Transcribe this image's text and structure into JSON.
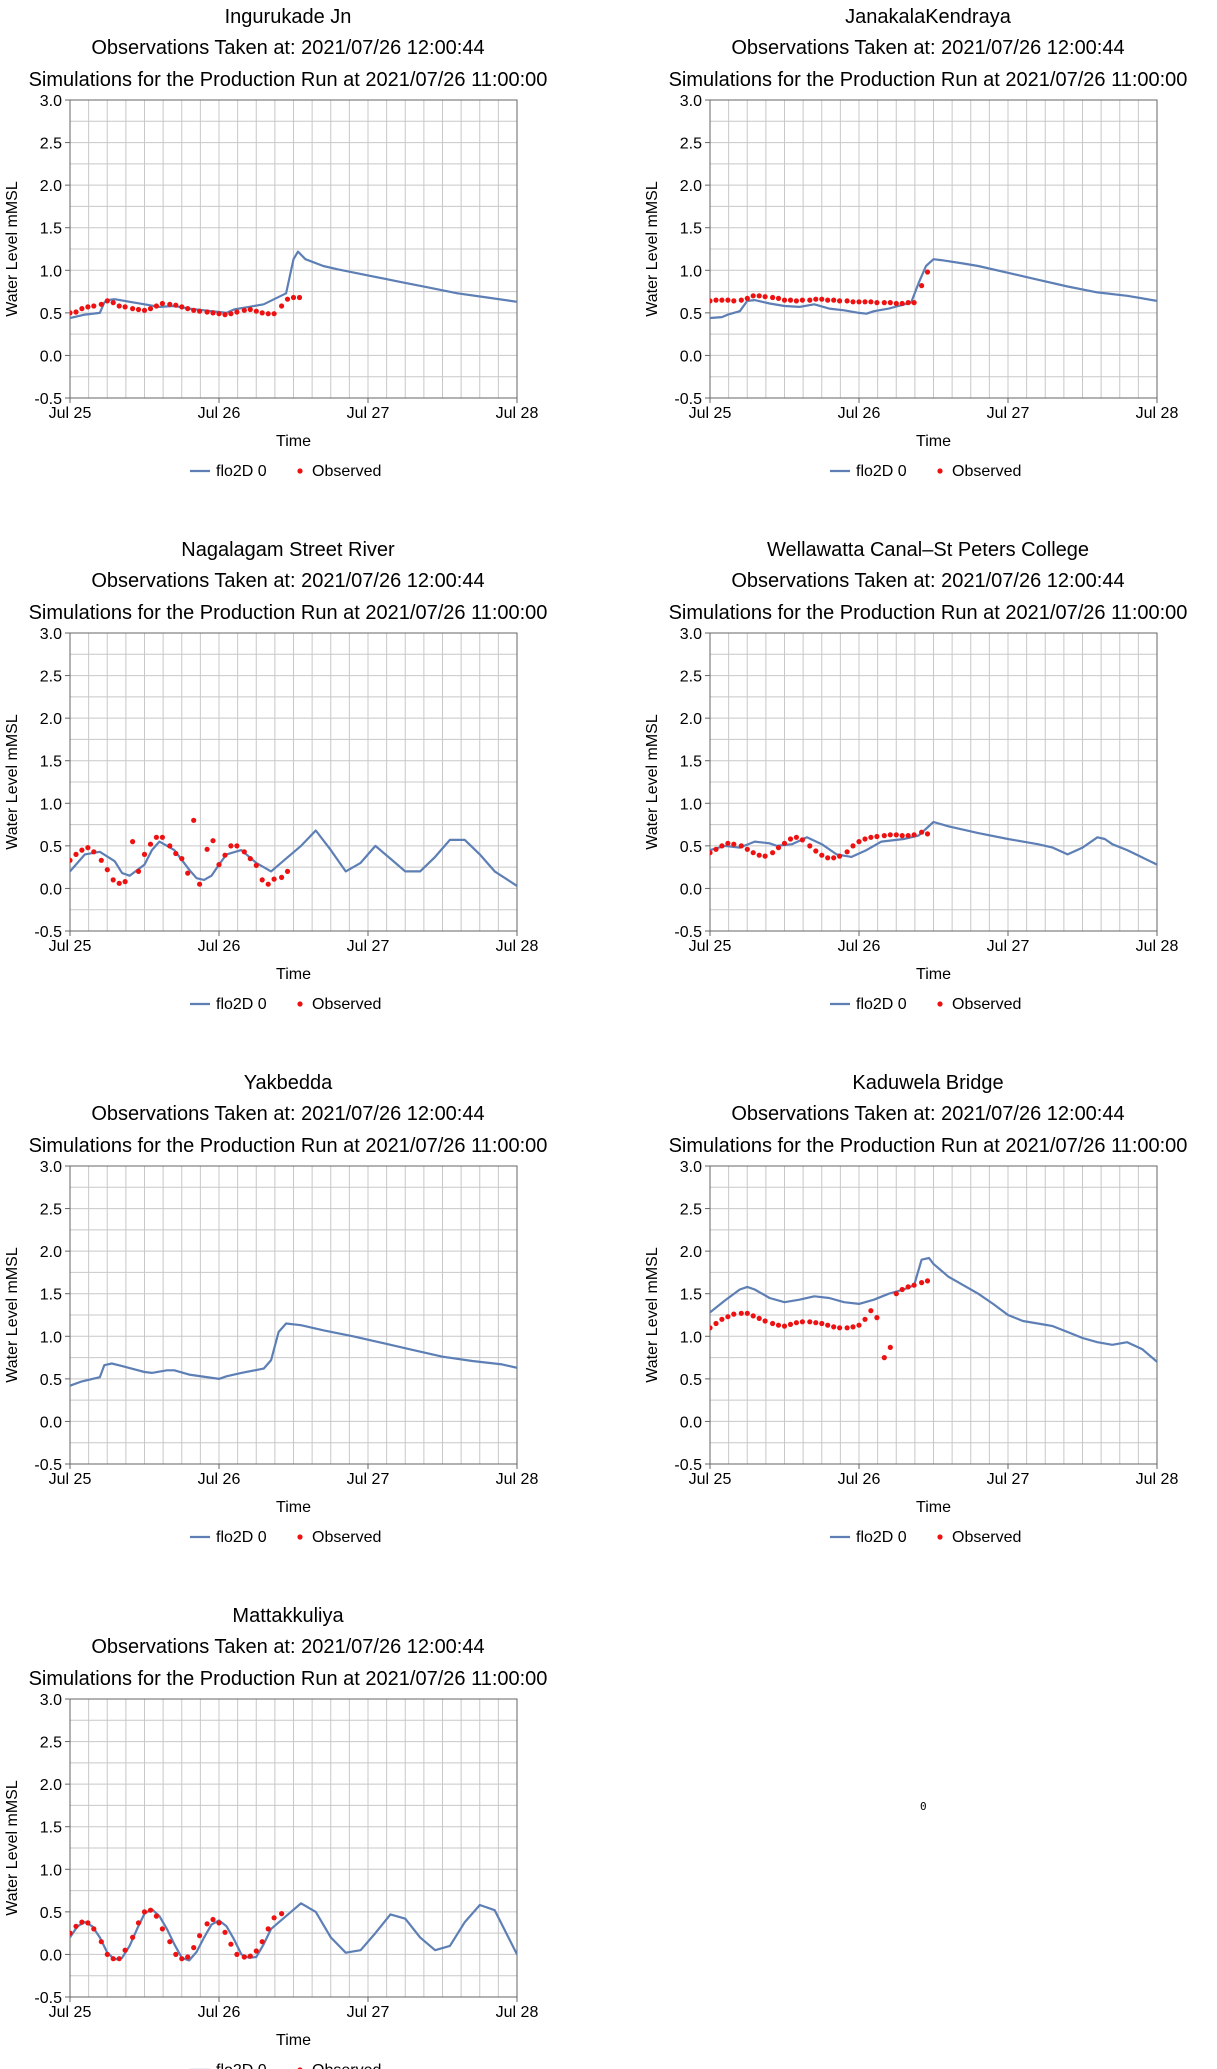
{
  "common": {
    "observation_label": "Observations Taken at: 2021/07/26 12:00:44",
    "simulation_label": "Simulations for the Production Run at 2021/07/26 11:00:00",
    "ylabel": "Water Level mMSL",
    "xlabel": "Time",
    "x_ticks": [
      "Jul 25",
      "Jul 26",
      "Jul 27",
      "Jul 28"
    ],
    "y_ticks": [
      "3.0",
      "2.5",
      "2.0",
      "1.5",
      "1.0",
      "0.5",
      "0.0",
      "-0.5"
    ],
    "legend": {
      "sim": "flo2D 0",
      "obs": "Observed"
    },
    "colors": {
      "sim": "#5d7fb5",
      "obs": "#ee1111",
      "grid": "#c8c8c8",
      "frame": "#666666"
    }
  },
  "stray_text": "0",
  "chart_data": [
    {
      "type": "line",
      "title": "Ingurukade Jn",
      "x_unit": "days since Jul 25 00:00",
      "xlim": [
        0,
        3
      ],
      "ylim": [
        -0.5,
        3.0
      ],
      "series": [
        {
          "name": "flo2D 0",
          "kind": "line",
          "x": [
            0,
            0.1,
            0.2,
            0.23,
            0.25,
            0.3,
            0.4,
            0.5,
            0.6,
            0.7,
            0.8,
            0.9,
            1.0,
            1.05,
            1.1,
            1.2,
            1.3,
            1.45,
            1.5,
            1.53,
            1.58,
            1.7,
            1.8,
            2.0,
            2.2,
            2.4,
            2.6,
            2.8,
            3.0
          ],
          "y": [
            0.44,
            0.48,
            0.5,
            0.62,
            0.65,
            0.66,
            0.63,
            0.6,
            0.57,
            0.58,
            0.55,
            0.53,
            0.51,
            0.5,
            0.54,
            0.57,
            0.6,
            0.73,
            1.13,
            1.22,
            1.13,
            1.05,
            1.01,
            0.94,
            0.87,
            0.8,
            0.73,
            0.68,
            0.63
          ]
        },
        {
          "name": "Observed",
          "kind": "points",
          "x": [
            0.0,
            0.04,
            0.08,
            0.12,
            0.16,
            0.21,
            0.25,
            0.29,
            0.33,
            0.37,
            0.42,
            0.46,
            0.5,
            0.54,
            0.58,
            0.62,
            0.67,
            0.71,
            0.75,
            0.79,
            0.83,
            0.87,
            0.92,
            0.96,
            1.0,
            1.04,
            1.08,
            1.12,
            1.17,
            1.21,
            1.25,
            1.29,
            1.33,
            1.37,
            1.42,
            1.46,
            1.5,
            1.54
          ],
          "y": [
            0.5,
            0.51,
            0.55,
            0.57,
            0.58,
            0.6,
            0.64,
            0.62,
            0.58,
            0.57,
            0.55,
            0.54,
            0.53,
            0.55,
            0.58,
            0.61,
            0.6,
            0.59,
            0.57,
            0.55,
            0.53,
            0.52,
            0.51,
            0.5,
            0.49,
            0.48,
            0.49,
            0.51,
            0.53,
            0.54,
            0.52,
            0.5,
            0.49,
            0.49,
            0.58,
            0.66,
            0.68,
            0.68
          ]
        }
      ]
    },
    {
      "type": "line",
      "title": "JanakalaKendraya",
      "x_unit": "days since Jul 25 00:00",
      "xlim": [
        0,
        3
      ],
      "ylim": [
        -0.5,
        3.0
      ],
      "series": [
        {
          "name": "flo2D 0",
          "kind": "line",
          "x": [
            0,
            0.08,
            0.12,
            0.2,
            0.25,
            0.3,
            0.4,
            0.5,
            0.6,
            0.7,
            0.8,
            0.9,
            1.0,
            1.05,
            1.1,
            1.2,
            1.35,
            1.4,
            1.45,
            1.5,
            1.55,
            1.7,
            1.8,
            2.0,
            2.2,
            2.4,
            2.6,
            2.8,
            3.0
          ],
          "y": [
            0.44,
            0.45,
            0.48,
            0.52,
            0.64,
            0.65,
            0.61,
            0.58,
            0.57,
            0.6,
            0.55,
            0.53,
            0.5,
            0.49,
            0.52,
            0.55,
            0.62,
            0.85,
            1.05,
            1.13,
            1.12,
            1.08,
            1.05,
            0.97,
            0.89,
            0.81,
            0.74,
            0.7,
            0.64
          ]
        },
        {
          "name": "Observed",
          "kind": "points",
          "x": [
            0.0,
            0.04,
            0.08,
            0.12,
            0.16,
            0.21,
            0.25,
            0.29,
            0.33,
            0.37,
            0.42,
            0.46,
            0.5,
            0.54,
            0.58,
            0.62,
            0.67,
            0.71,
            0.75,
            0.79,
            0.83,
            0.87,
            0.92,
            0.96,
            1.0,
            1.04,
            1.08,
            1.12,
            1.17,
            1.21,
            1.25,
            1.29,
            1.33,
            1.37,
            1.42,
            1.46
          ],
          "y": [
            0.64,
            0.65,
            0.65,
            0.65,
            0.64,
            0.65,
            0.67,
            0.7,
            0.7,
            0.69,
            0.68,
            0.67,
            0.65,
            0.65,
            0.64,
            0.65,
            0.65,
            0.66,
            0.66,
            0.65,
            0.65,
            0.64,
            0.64,
            0.63,
            0.63,
            0.63,
            0.63,
            0.62,
            0.62,
            0.62,
            0.61,
            0.61,
            0.62,
            0.62,
            0.82,
            0.98
          ]
        }
      ]
    },
    {
      "type": "line",
      "title": "Nagalagam Street River",
      "x_unit": "days since Jul 25 00:00",
      "xlim": [
        0,
        3
      ],
      "ylim": [
        -0.5,
        3.0
      ],
      "series": [
        {
          "name": "flo2D 0",
          "kind": "line",
          "x": [
            0,
            0.1,
            0.2,
            0.3,
            0.35,
            0.4,
            0.5,
            0.55,
            0.6,
            0.7,
            0.8,
            0.85,
            0.9,
            0.95,
            1.0,
            1.05,
            1.15,
            1.25,
            1.35,
            1.45,
            1.55,
            1.65,
            1.75,
            1.85,
            1.95,
            2.05,
            2.15,
            2.25,
            2.35,
            2.45,
            2.55,
            2.65,
            2.75,
            2.85,
            3.0
          ],
          "y": [
            0.2,
            0.4,
            0.43,
            0.32,
            0.18,
            0.15,
            0.28,
            0.45,
            0.55,
            0.45,
            0.22,
            0.12,
            0.1,
            0.15,
            0.28,
            0.4,
            0.45,
            0.3,
            0.2,
            0.35,
            0.5,
            0.68,
            0.45,
            0.2,
            0.3,
            0.5,
            0.35,
            0.2,
            0.2,
            0.37,
            0.57,
            0.57,
            0.4,
            0.2,
            0.03
          ]
        },
        {
          "name": "Observed",
          "kind": "points",
          "x": [
            0.0,
            0.04,
            0.08,
            0.12,
            0.16,
            0.21,
            0.25,
            0.29,
            0.33,
            0.37,
            0.42,
            0.46,
            0.5,
            0.54,
            0.58,
            0.62,
            0.67,
            0.71,
            0.75,
            0.79,
            0.83,
            0.87,
            0.92,
            0.96,
            1.0,
            1.04,
            1.08,
            1.12,
            1.17,
            1.21,
            1.25,
            1.29,
            1.33,
            1.37,
            1.42,
            1.46
          ],
          "y": [
            0.33,
            0.4,
            0.45,
            0.48,
            0.43,
            0.33,
            0.22,
            0.1,
            0.06,
            0.08,
            0.55,
            0.2,
            0.4,
            0.52,
            0.6,
            0.6,
            0.5,
            0.41,
            0.35,
            0.18,
            0.8,
            0.05,
            0.46,
            0.56,
            0.28,
            0.39,
            0.5,
            0.5,
            0.43,
            0.35,
            0.27,
            0.1,
            0.05,
            0.11,
            0.13,
            0.2
          ]
        }
      ]
    },
    {
      "type": "line",
      "title": "Wellawatta Canal–St Peters College",
      "x_unit": "days since Jul 25 00:00",
      "xlim": [
        0,
        3
      ],
      "ylim": [
        -0.5,
        3.0
      ],
      "series": [
        {
          "name": "flo2D 0",
          "kind": "line",
          "x": [
            0,
            0.1,
            0.2,
            0.3,
            0.4,
            0.45,
            0.55,
            0.65,
            0.75,
            0.85,
            0.95,
            1.05,
            1.15,
            1.3,
            1.4,
            1.45,
            1.5,
            1.6,
            1.8,
            2.0,
            2.2,
            2.3,
            2.4,
            2.5,
            2.6,
            2.65,
            2.7,
            2.8,
            3.0
          ],
          "y": [
            0.45,
            0.5,
            0.48,
            0.55,
            0.53,
            0.5,
            0.52,
            0.6,
            0.52,
            0.4,
            0.37,
            0.45,
            0.55,
            0.58,
            0.62,
            0.7,
            0.78,
            0.73,
            0.65,
            0.58,
            0.52,
            0.48,
            0.4,
            0.48,
            0.6,
            0.58,
            0.52,
            0.45,
            0.28
          ]
        },
        {
          "name": "Observed",
          "kind": "points",
          "x": [
            0.0,
            0.04,
            0.08,
            0.12,
            0.16,
            0.21,
            0.25,
            0.29,
            0.33,
            0.37,
            0.42,
            0.46,
            0.5,
            0.54,
            0.58,
            0.62,
            0.67,
            0.71,
            0.75,
            0.79,
            0.83,
            0.87,
            0.92,
            0.96,
            1.0,
            1.04,
            1.08,
            1.12,
            1.17,
            1.21,
            1.25,
            1.29,
            1.33,
            1.37,
            1.42,
            1.46
          ],
          "y": [
            0.42,
            0.46,
            0.5,
            0.53,
            0.52,
            0.5,
            0.46,
            0.42,
            0.39,
            0.38,
            0.42,
            0.48,
            0.53,
            0.58,
            0.6,
            0.57,
            0.5,
            0.44,
            0.39,
            0.36,
            0.36,
            0.38,
            0.43,
            0.5,
            0.55,
            0.58,
            0.6,
            0.61,
            0.62,
            0.63,
            0.63,
            0.62,
            0.62,
            0.63,
            0.66,
            0.64
          ]
        }
      ]
    },
    {
      "type": "line",
      "title": "Yakbedda",
      "x_unit": "days since Jul 25 00:00",
      "xlim": [
        0,
        3
      ],
      "ylim": [
        -0.5,
        3.0
      ],
      "series": [
        {
          "name": "flo2D 0",
          "kind": "line",
          "x": [
            0,
            0.08,
            0.2,
            0.23,
            0.28,
            0.35,
            0.5,
            0.55,
            0.65,
            0.7,
            0.8,
            1.0,
            1.05,
            1.15,
            1.3,
            1.35,
            1.4,
            1.45,
            1.55,
            1.7,
            1.9,
            2.1,
            2.3,
            2.5,
            2.7,
            2.9,
            3.0
          ],
          "y": [
            0.42,
            0.47,
            0.52,
            0.66,
            0.68,
            0.65,
            0.58,
            0.57,
            0.6,
            0.6,
            0.55,
            0.5,
            0.53,
            0.57,
            0.62,
            0.72,
            1.05,
            1.15,
            1.13,
            1.07,
            1.0,
            0.92,
            0.84,
            0.76,
            0.71,
            0.67,
            0.63
          ]
        }
      ]
    },
    {
      "type": "line",
      "title": "Kaduwela Bridge",
      "x_unit": "days since Jul 25 00:00",
      "xlim": [
        0,
        3
      ],
      "ylim": [
        -0.5,
        3.0
      ],
      "series": [
        {
          "name": "flo2D 0",
          "kind": "line",
          "x": [
            0,
            0.1,
            0.2,
            0.25,
            0.3,
            0.4,
            0.5,
            0.6,
            0.7,
            0.8,
            0.9,
            1.0,
            1.1,
            1.2,
            1.3,
            1.37,
            1.42,
            1.47,
            1.5,
            1.6,
            1.7,
            1.8,
            1.9,
            2.0,
            2.1,
            2.2,
            2.3,
            2.4,
            2.5,
            2.6,
            2.7,
            2.8,
            2.9,
            3.0
          ],
          "y": [
            1.28,
            1.42,
            1.55,
            1.58,
            1.55,
            1.45,
            1.4,
            1.43,
            1.47,
            1.45,
            1.4,
            1.38,
            1.43,
            1.5,
            1.55,
            1.6,
            1.9,
            1.92,
            1.85,
            1.7,
            1.6,
            1.5,
            1.38,
            1.25,
            1.18,
            1.15,
            1.12,
            1.05,
            0.98,
            0.93,
            0.9,
            0.93,
            0.85,
            0.7
          ]
        },
        {
          "name": "Observed",
          "kind": "points",
          "x": [
            0.0,
            0.04,
            0.08,
            0.12,
            0.16,
            0.21,
            0.25,
            0.29,
            0.33,
            0.37,
            0.42,
            0.46,
            0.5,
            0.54,
            0.58,
            0.62,
            0.67,
            0.71,
            0.75,
            0.79,
            0.83,
            0.87,
            0.92,
            0.96,
            1.0,
            1.04,
            1.08,
            1.12,
            1.17,
            1.21,
            1.25,
            1.29,
            1.33,
            1.37,
            1.42,
            1.46
          ],
          "y": [
            1.1,
            1.15,
            1.2,
            1.23,
            1.26,
            1.27,
            1.27,
            1.24,
            1.21,
            1.18,
            1.15,
            1.13,
            1.12,
            1.14,
            1.16,
            1.17,
            1.17,
            1.16,
            1.15,
            1.13,
            1.11,
            1.1,
            1.1,
            1.11,
            1.13,
            1.2,
            1.3,
            1.22,
            0.75,
            0.87,
            1.5,
            1.55,
            1.58,
            1.6,
            1.63,
            1.65
          ]
        }
      ]
    },
    {
      "type": "line",
      "title": "Mattakkuliya",
      "x_unit": "days since Jul 25 00:00",
      "xlim": [
        0,
        3
      ],
      "ylim": [
        -0.5,
        3.0
      ],
      "series": [
        {
          "name": "flo2D 0",
          "kind": "line",
          "x": [
            0,
            0.05,
            0.1,
            0.15,
            0.2,
            0.25,
            0.3,
            0.35,
            0.4,
            0.45,
            0.5,
            0.55,
            0.6,
            0.65,
            0.7,
            0.75,
            0.8,
            0.85,
            0.9,
            0.95,
            1.0,
            1.05,
            1.1,
            1.15,
            1.2,
            1.25,
            1.3,
            1.35,
            1.45,
            1.55,
            1.65,
            1.75,
            1.85,
            1.95,
            2.05,
            2.15,
            2.25,
            2.35,
            2.45,
            2.55,
            2.65,
            2.75,
            2.85,
            3.0
          ],
          "y": [
            0.2,
            0.33,
            0.38,
            0.33,
            0.2,
            0.02,
            -0.06,
            -0.04,
            0.1,
            0.3,
            0.48,
            0.53,
            0.45,
            0.3,
            0.12,
            -0.04,
            -0.07,
            0.03,
            0.2,
            0.35,
            0.4,
            0.33,
            0.18,
            0.0,
            -0.04,
            -0.03,
            0.12,
            0.3,
            0.45,
            0.6,
            0.5,
            0.2,
            0.02,
            0.05,
            0.25,
            0.47,
            0.42,
            0.2,
            0.05,
            0.1,
            0.38,
            0.58,
            0.52,
            0.0
          ]
        },
        {
          "name": "Observed",
          "kind": "points",
          "x": [
            0.0,
            0.04,
            0.08,
            0.12,
            0.16,
            0.21,
            0.25,
            0.29,
            0.33,
            0.37,
            0.42,
            0.46,
            0.5,
            0.54,
            0.58,
            0.62,
            0.67,
            0.71,
            0.75,
            0.79,
            0.83,
            0.87,
            0.92,
            0.96,
            1.0,
            1.04,
            1.08,
            1.12,
            1.17,
            1.21,
            1.25,
            1.29,
            1.33,
            1.37,
            1.42
          ],
          "y": [
            0.25,
            0.33,
            0.38,
            0.37,
            0.3,
            0.15,
            0.0,
            -0.05,
            -0.05,
            0.05,
            0.2,
            0.37,
            0.5,
            0.52,
            0.45,
            0.3,
            0.15,
            0.0,
            -0.05,
            -0.03,
            0.08,
            0.22,
            0.36,
            0.41,
            0.37,
            0.26,
            0.12,
            0.0,
            -0.03,
            -0.02,
            0.04,
            0.15,
            0.3,
            0.43,
            0.48
          ]
        }
      ]
    }
  ]
}
